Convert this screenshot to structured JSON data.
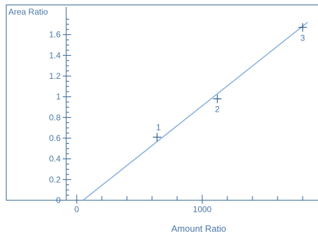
{
  "colors": {
    "axis": "#2f5f8f",
    "text": "#4a78a8",
    "line": "#8db3de",
    "marker": "#2f5f8f",
    "background": "#ffffff"
  },
  "chart_data": {
    "type": "scatter",
    "title": "",
    "xlabel": "Amount Ratio",
    "ylabel": "Area Ratio",
    "xlim": [
      0,
      1900
    ],
    "ylim": [
      0,
      1.8
    ],
    "x_ticks": [
      0,
      1000
    ],
    "x_tick_labels": [
      "0",
      "1000"
    ],
    "y_ticks": [
      0,
      0.2,
      0.4,
      0.6,
      0.8,
      1.0,
      1.2,
      1.4,
      1.6
    ],
    "y_tick_labels": [
      "0",
      "0.2",
      "0.4",
      "0.6",
      "0.8",
      "1",
      "1.2",
      "1.4",
      "1.6"
    ],
    "grid": false,
    "legend": "none",
    "points": [
      {
        "label": "1",
        "x": 640,
        "y": 0.61
      },
      {
        "label": "2",
        "x": 1120,
        "y": 0.98
      },
      {
        "label": "3",
        "x": 1800,
        "y": 1.67
      }
    ],
    "fit_line": {
      "x": [
        50,
        1840
      ],
      "y": [
        0.0,
        1.72
      ]
    }
  }
}
